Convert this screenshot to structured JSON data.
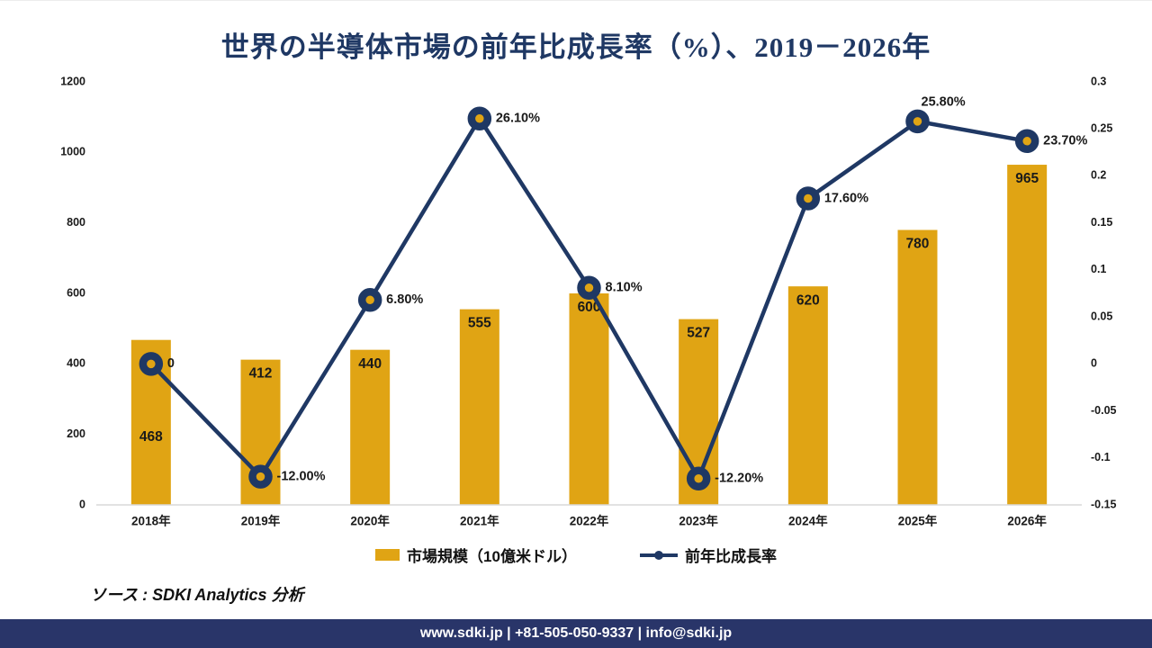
{
  "title": "世界の半導体市場の前年比成長率（%）、2019－2026年",
  "colors": {
    "gold": "#e0a414",
    "navy": "#1f3864",
    "axis_line": "#d9d9d9",
    "footer_bg": "#293569",
    "label_text": "#1a1a1a"
  },
  "chart_data": {
    "type": "bar",
    "subtype": "combo-bar-line-dual-axis",
    "title": "世界の半導体市場の前年比成長率（%）、2019－2026年",
    "categories": [
      "2018年",
      "2019年",
      "2020年",
      "2021年",
      "2022年",
      "2023年",
      "2024年",
      "2025年",
      "2026年"
    ],
    "series": [
      {
        "name": "市場規模（10億米ドル）",
        "type": "bar",
        "axis": "left",
        "values": [
          468,
          412,
          440,
          555,
          600,
          527,
          620,
          780,
          965
        ],
        "labels": [
          "468",
          "412",
          "440",
          "555",
          "600",
          "527",
          "620",
          "780",
          "965"
        ]
      },
      {
        "name": "前年比成長率",
        "type": "line",
        "axis": "right",
        "values": [
          0,
          -0.12,
          0.068,
          0.261,
          0.081,
          -0.122,
          0.176,
          0.258,
          0.237
        ],
        "labels": [
          "0",
          "-12.00%",
          "6.80%",
          "26.10%",
          "8.10%",
          "-12.20%",
          "17.60%",
          "25.80%",
          "23.70%"
        ]
      }
    ],
    "left_axis": {
      "min": 0,
      "max": 1200,
      "ticks": [
        "1200",
        "1000",
        "800",
        "600",
        "400",
        "200",
        "0"
      ]
    },
    "right_axis": {
      "min": -0.15,
      "max": 0.3,
      "ticks": [
        "0.3",
        "0.25",
        "0.2",
        "0.15",
        "0.1",
        "0.05",
        "0",
        "-0.05",
        "-0.1",
        "-0.15"
      ]
    },
    "grid": false,
    "legend_position": "bottom"
  },
  "legend": {
    "items": [
      {
        "label": "市場規模（10億米ドル）",
        "swatch": "bar"
      },
      {
        "label": "前年比成長率",
        "swatch": "line-marker"
      }
    ]
  },
  "source_note": "ソース : SDKI Analytics 分析",
  "footer": {
    "text": "www.sdki.jp | +81-505-050-9337 | info@sdki.jp"
  }
}
